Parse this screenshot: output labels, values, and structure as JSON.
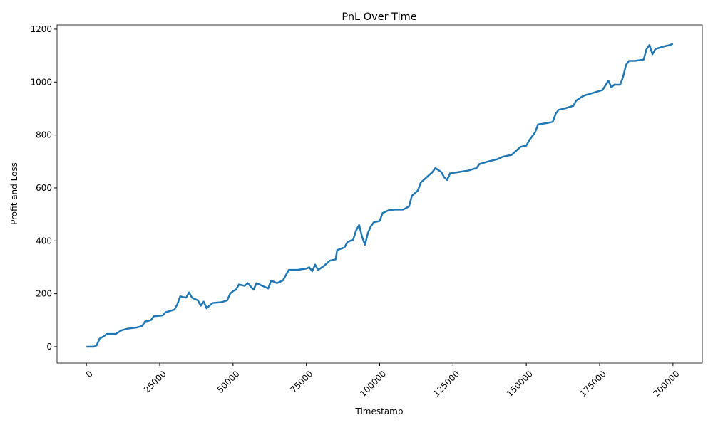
{
  "chart_data": {
    "type": "line",
    "title": "PnL Over Time",
    "x_label": "Timestamp",
    "y_label": "Profit and Loss",
    "x": [
      0,
      2500,
      3500,
      4500,
      6000,
      7000,
      10000,
      12000,
      14000,
      17000,
      19000,
      20000,
      22000,
      23000,
      26000,
      27000,
      30000,
      31000,
      32000,
      34000,
      35000,
      36000,
      38000,
      39000,
      40000,
      41000,
      42000,
      43000,
      46000,
      48000,
      49000,
      50000,
      51000,
      52000,
      54000,
      55000,
      57000,
      58000,
      60000,
      62000,
      63000,
      65000,
      67000,
      68000,
      69000,
      72000,
      75000,
      76000,
      77000,
      78000,
      79000,
      81000,
      83000,
      85000,
      85500,
      88000,
      89000,
      91000,
      92000,
      93000,
      94000,
      95000,
      96000,
      97000,
      98000,
      100000,
      101000,
      103000,
      105000,
      108000,
      110000,
      111000,
      113000,
      114000,
      116000,
      118000,
      119000,
      121000,
      122000,
      123000,
      124000,
      127000,
      130000,
      133000,
      134000,
      137000,
      140000,
      142000,
      145000,
      146000,
      148000,
      150000,
      151000,
      153000,
      154000,
      157000,
      159000,
      160000,
      161000,
      163000,
      166000,
      167000,
      169000,
      170000,
      173000,
      176000,
      178000,
      179000,
      180000,
      182000,
      183000,
      184000,
      185000,
      187000,
      190000,
      191000,
      192000,
      193000,
      194000,
      197000,
      199000,
      200000
    ],
    "series": [
      {
        "name": "PnL",
        "color": "#1f77b4",
        "values": [
          0,
          0,
          5,
          30,
          40,
          48,
          48,
          62,
          68,
          72,
          78,
          95,
          100,
          115,
          118,
          130,
          140,
          160,
          190,
          185,
          205,
          185,
          175,
          155,
          170,
          145,
          155,
          165,
          168,
          175,
          200,
          210,
          215,
          235,
          230,
          240,
          215,
          240,
          230,
          220,
          250,
          240,
          250,
          270,
          290,
          290,
          295,
          300,
          285,
          310,
          290,
          305,
          325,
          330,
          365,
          375,
          395,
          405,
          440,
          460,
          415,
          385,
          430,
          455,
          470,
          475,
          505,
          515,
          518,
          518,
          530,
          570,
          590,
          620,
          640,
          660,
          675,
          660,
          640,
          630,
          655,
          660,
          665,
          675,
          690,
          700,
          708,
          718,
          725,
          735,
          755,
          760,
          780,
          810,
          840,
          845,
          850,
          880,
          895,
          900,
          910,
          930,
          945,
          950,
          960,
          970,
          1005,
          980,
          990,
          990,
          1020,
          1065,
          1080,
          1080,
          1085,
          1125,
          1140,
          1105,
          1125,
          1135,
          1140,
          1145
        ]
      }
    ],
    "xlim": [
      -10000,
      210000
    ],
    "ylim": [
      -62,
      1216
    ],
    "xticks": [
      0,
      25000,
      50000,
      75000,
      100000,
      125000,
      150000,
      175000,
      200000
    ],
    "yticks": [
      0,
      200,
      400,
      600,
      800,
      1000,
      1200
    ],
    "grid": false
  }
}
